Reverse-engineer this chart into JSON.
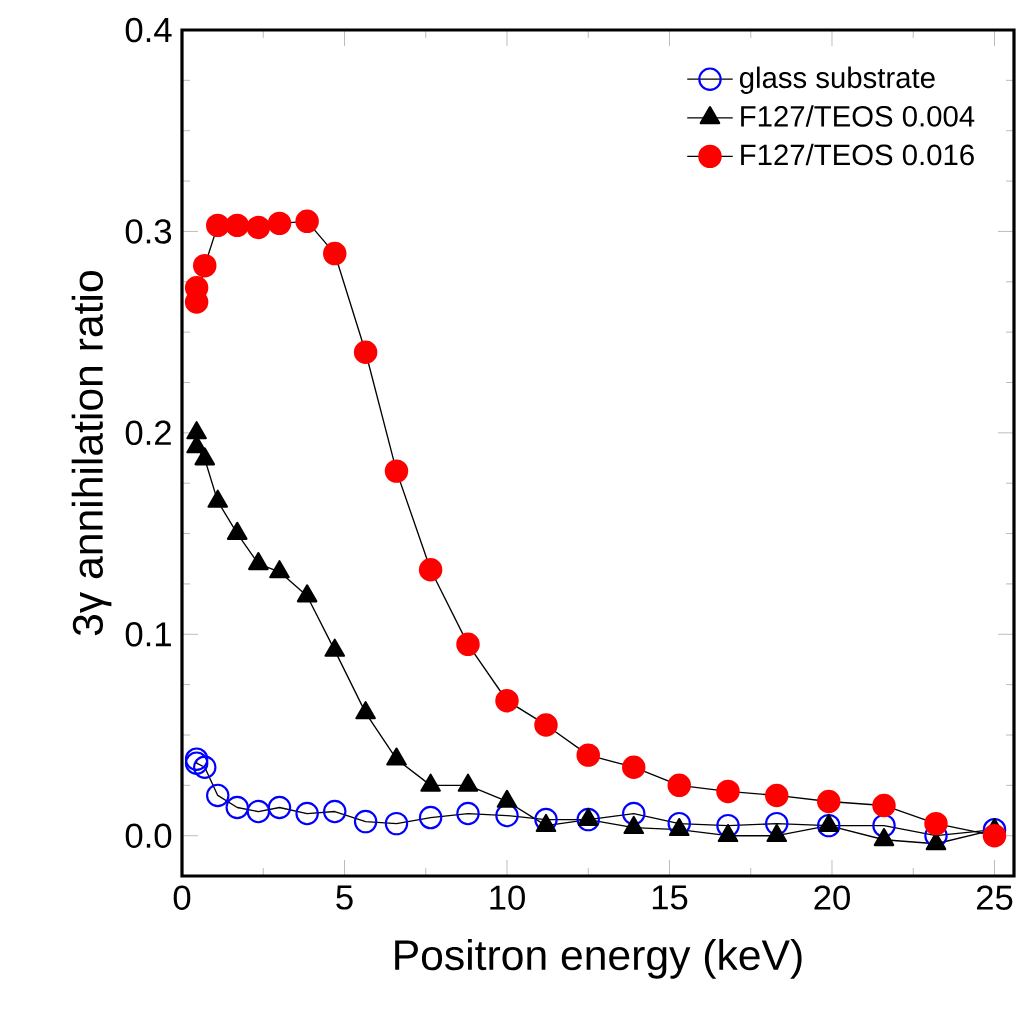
{
  "chart_data": {
    "type": "line",
    "xlabel": "Positron energy (keV)",
    "ylabel": "3γ annihilation ratio",
    "x": [
      0.45,
      0.45,
      0.7,
      1.1,
      1.7,
      2.35,
      3.0,
      3.85,
      4.7,
      5.65,
      6.6,
      7.65,
      8.8,
      10.0,
      11.2,
      12.5,
      13.9,
      15.3,
      16.8,
      18.3,
      19.9,
      21.6,
      23.2,
      25.0
    ],
    "series": [
      {
        "name": "glass substrate",
        "color": "#0000ff",
        "marker": "open circle",
        "values": [
          0.038,
          0.036,
          0.034,
          0.02,
          0.014,
          0.012,
          0.014,
          0.011,
          0.012,
          0.007,
          0.006,
          0.009,
          0.011,
          0.01,
          0.008,
          0.008,
          0.011,
          0.006,
          0.005,
          0.006,
          0.005,
          0.005,
          0.0,
          0.003
        ]
      },
      {
        "name": "F127/TEOS 0.004",
        "color": "#000000",
        "marker": "triangle",
        "values": [
          0.2,
          0.193,
          0.187,
          0.166,
          0.15,
          0.135,
          0.131,
          0.119,
          0.092,
          0.061,
          0.038,
          0.025,
          0.025,
          0.017,
          0.005,
          0.008,
          0.004,
          0.003,
          0.0,
          0.0,
          0.005,
          -0.002,
          -0.004,
          0.003
        ]
      },
      {
        "name": "F127/TEOS 0.016",
        "color": "#ff0000",
        "marker": "circle",
        "values": [
          0.272,
          0.265,
          0.283,
          0.303,
          0.303,
          0.302,
          0.304,
          0.305,
          0.289,
          0.24,
          0.181,
          0.132,
          0.095,
          0.067,
          0.055,
          0.04,
          0.034,
          0.025,
          0.022,
          0.02,
          0.017,
          0.015,
          0.006,
          0.0
        ]
      }
    ],
    "xlim": [
      0,
      25.6
    ],
    "ylim": [
      -0.02,
      0.4
    ],
    "xticks": [
      0,
      5,
      10,
      15,
      20,
      25
    ],
    "yticks": [
      {
        "value": 0,
        "label": "0.0"
      },
      {
        "value": 0.1,
        "label": "0.1"
      },
      {
        "value": 0.2,
        "label": "0.2"
      },
      {
        "value": 0.3,
        "label": "0.3"
      },
      {
        "value": 0.4,
        "label": "0.4"
      }
    ],
    "legend": "top right",
    "grid": false,
    "line_style": "solid"
  }
}
